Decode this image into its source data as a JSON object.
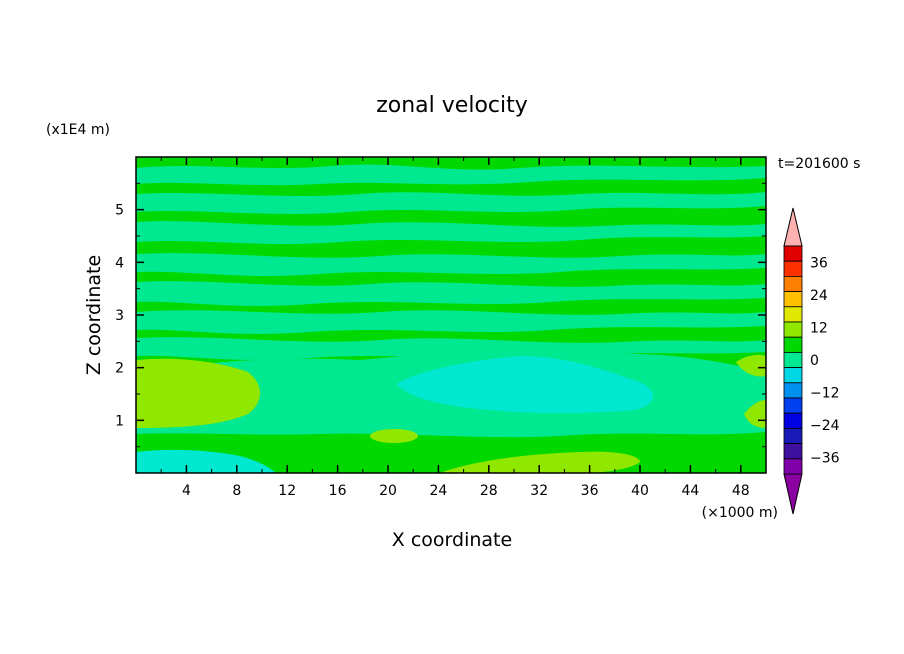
{
  "chart_data": {
    "type": "heatmap",
    "title": "zonal velocity",
    "xlabel": "X coordinate",
    "ylabel": "Z coordinate",
    "x_unit_label": "(×1000 m)",
    "y_unit_label": "(x1E4 m)",
    "time_label": "t=201600 s",
    "xlim": [
      0,
      50
    ],
    "ylim": [
      0,
      6
    ],
    "x_ticks": [
      4,
      8,
      12,
      16,
      20,
      24,
      28,
      32,
      36,
      40,
      44,
      48
    ],
    "y_ticks": [
      1,
      2,
      3,
      4,
      5
    ],
    "colorbar": {
      "levels": [
        -42,
        -36,
        -30,
        -24,
        -18,
        -12,
        -6,
        0,
        6,
        12,
        18,
        24,
        30,
        36,
        42
      ],
      "labels": [
        -36,
        -24,
        -12,
        0,
        12,
        24,
        36
      ],
      "colors": [
        "#7f00a8",
        "#3f10a0",
        "#1a1ab8",
        "#0000e0",
        "#0040f0",
        "#0090f0",
        "#00d8e8",
        "#00e890",
        "#00d800",
        "#90e800",
        "#e0e800",
        "#ffc000",
        "#ff8000",
        "#ff3000",
        "#e00000"
      ],
      "under_color": "#8a00a0",
      "over_color": "#ffb0b0"
    },
    "layers": [
      {
        "z": 5.85,
        "u": 2
      },
      {
        "z": 5.6,
        "u": -3
      },
      {
        "z": 5.35,
        "u": 2
      },
      {
        "z": 5.1,
        "u": -3
      },
      {
        "z": 4.85,
        "u": 2
      },
      {
        "z": 4.55,
        "u": -3
      },
      {
        "z": 4.3,
        "u": 2
      },
      {
        "z": 4.05,
        "u": -3
      },
      {
        "z": 3.75,
        "u": 2
      },
      {
        "z": 3.5,
        "u": -3
      },
      {
        "z": 3.25,
        "u": 2
      },
      {
        "z": 3.0,
        "u": -3
      },
      {
        "z": 2.75,
        "u": 2
      },
      {
        "z": 2.45,
        "u": -3
      },
      {
        "z": 2.2,
        "u": 2
      }
    ],
    "regions": [
      {
        "label": "cyan core",
        "x": [
          26,
          40
        ],
        "z": [
          1.2,
          2.2
        ],
        "u": -8
      },
      {
        "label": "left yellow-green",
        "x": [
          0,
          10
        ],
        "z": [
          0.8,
          2.1
        ],
        "u": 7
      },
      {
        "label": "bottom-left cyan",
        "x": [
          0,
          12
        ],
        "z": [
          0.0,
          0.3
        ],
        "u": -8
      },
      {
        "label": "bottom yellow-green",
        "x": [
          24,
          40
        ],
        "z": [
          0.0,
          0.4
        ],
        "u": 7
      },
      {
        "label": "right yellow-green",
        "x": [
          48,
          50
        ],
        "z": [
          0.9,
          2.2
        ],
        "u": 7
      }
    ]
  }
}
